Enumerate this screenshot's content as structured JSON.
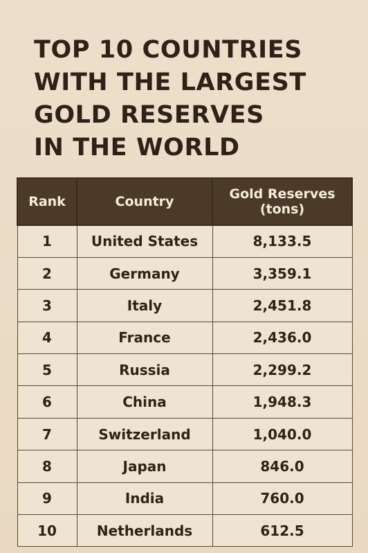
{
  "chart_data": {
    "type": "table",
    "title_lines": [
      "TOP 10 COUNTRIES",
      "WITH THE LARGEST",
      "GOLD RESERVES",
      "IN THE WORLD"
    ],
    "columns": [
      "Rank",
      "Country",
      "Gold Reserves (tons)"
    ],
    "header_reserves_lines": [
      "Gold Reserves",
      "(tons)"
    ],
    "rows": [
      {
        "rank": "1",
        "country": "United States",
        "reserves": "8,133.5"
      },
      {
        "rank": "2",
        "country": "Germany",
        "reserves": "3,359.1"
      },
      {
        "rank": "3",
        "country": "Italy",
        "reserves": "2,451.8"
      },
      {
        "rank": "4",
        "country": "France",
        "reserves": "2,436.0"
      },
      {
        "rank": "5",
        "country": "Russia",
        "reserves": "2,299.2"
      },
      {
        "rank": "6",
        "country": "China",
        "reserves": "1,948.3"
      },
      {
        "rank": "7",
        "country": "Switzerland",
        "reserves": "1,040.0"
      },
      {
        "rank": "8",
        "country": "Japan",
        "reserves": "846.0"
      },
      {
        "rank": "9",
        "country": "India",
        "reserves": "760.0"
      },
      {
        "rank": "10",
        "country": "Netherlands",
        "reserves": "612.5"
      }
    ],
    "colors": {
      "background": "#ebdcc6",
      "header_fill": "#4c3a28",
      "header_text": "#f6ecdc",
      "cell_fill": "#efe4d2",
      "text": "#2f2217",
      "border": "#5a4633"
    }
  }
}
